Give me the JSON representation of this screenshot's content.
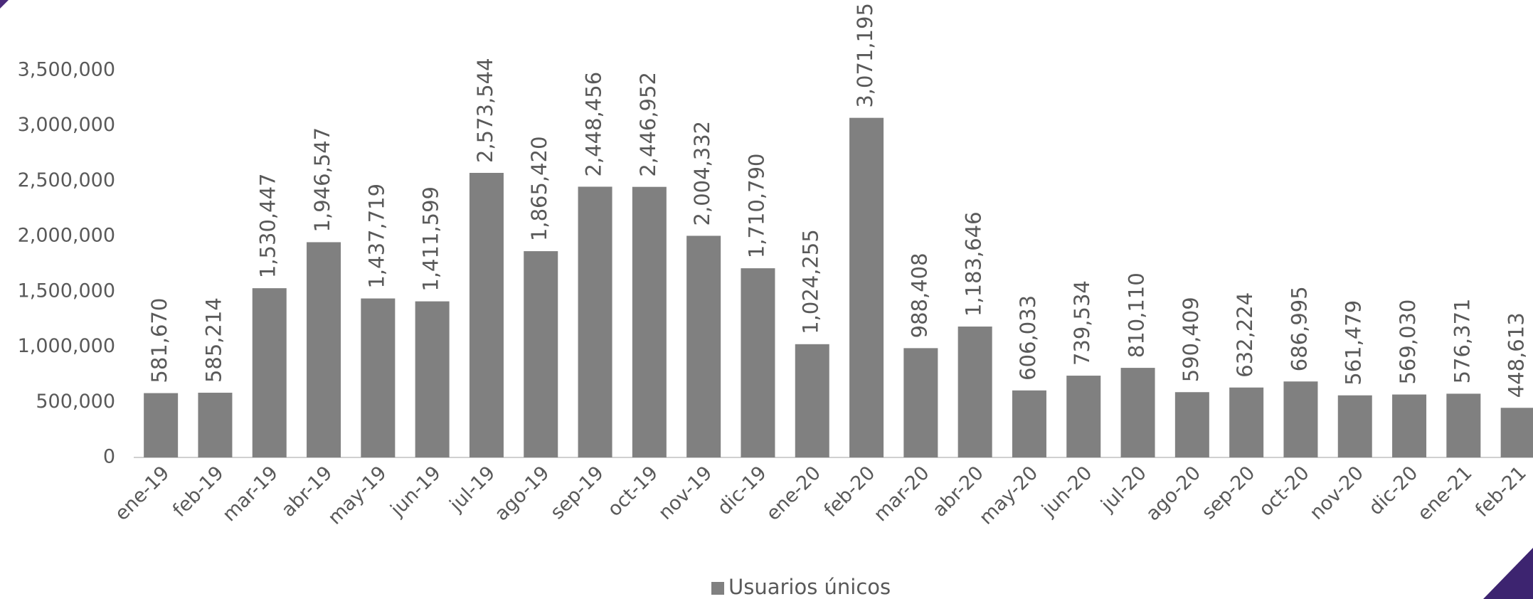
{
  "chart_data": {
    "type": "bar",
    "categories": [
      "ene-19",
      "feb-19",
      "mar-19",
      "abr-19",
      "may-19",
      "jun-19",
      "jul-19",
      "ago-19",
      "sep-19",
      "oct-19",
      "nov-19",
      "dic-19",
      "ene-20",
      "feb-20",
      "mar-20",
      "abr-20",
      "may-20",
      "jun-20",
      "jul-20",
      "ago-20",
      "sep-20",
      "oct-20",
      "nov-20",
      "dic-20",
      "ene-21",
      "feb-21"
    ],
    "series": [
      {
        "name": "Usuarios únicos",
        "color": "#808080",
        "values": [
          581670,
          585214,
          1530447,
          1946547,
          1437719,
          1411599,
          2573544,
          1865420,
          2448456,
          2446952,
          2004332,
          1710790,
          1024255,
          3071195,
          988408,
          1183646,
          606033,
          739534,
          810110,
          590409,
          632224,
          686995,
          561479,
          569030,
          576371,
          448613
        ],
        "value_labels": [
          "581,670",
          "585,214",
          "1,530,447",
          "1,946,547",
          "1,437,719",
          "1,411,599",
          "2,573,544",
          "1,865,420",
          "2,448,456",
          "2,446,952",
          "2,004,332",
          "1,710,790",
          "1,024,255",
          "3,071,195",
          "988,408",
          "1,183,646",
          "606,033",
          "739,534",
          "810,110",
          "590,409",
          "632,224",
          "686,995",
          "561,479",
          "569,030",
          "576,371",
          "448,613"
        ]
      }
    ],
    "ylim": [
      0,
      3500000
    ],
    "yticks": [
      0,
      {
        "value": 500000,
        "label": "500,000"
      },
      {
        "value": 1000000,
        "label": "1,000,000"
      },
      {
        "value": 1500000,
        "label": "1,500,000"
      },
      {
        "value": 2000000,
        "label": "2,000,000"
      },
      {
        "value": 2500000,
        "label": "2,500,000"
      },
      {
        "value": 3000000,
        "label": "3,000,000"
      },
      {
        "value": 3500000,
        "label": "3,500,000"
      }
    ],
    "grid": false,
    "legend": "bottom"
  }
}
